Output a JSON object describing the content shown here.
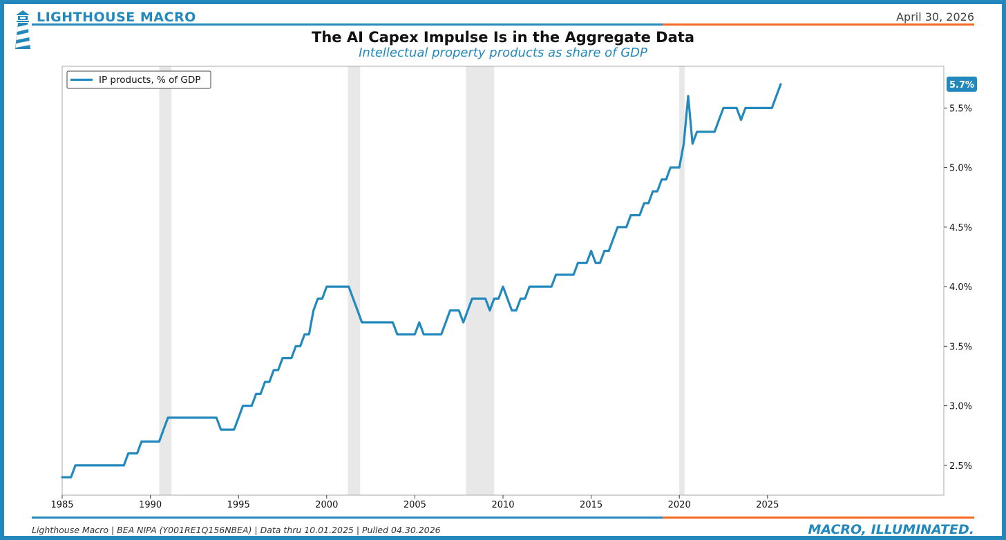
{
  "header": {
    "brand": "LIGHTHOUSE MACRO",
    "date": "April 30, 2026"
  },
  "colors": {
    "brand_blue": "#2389bd",
    "accent_orange": "#f26b21",
    "recession_shade": "#e8e8e8"
  },
  "chart_data": {
    "type": "line",
    "title": "The AI Capex Impulse Is in the Aggregate Data",
    "subtitle": "Intellectual property products as share of GDP",
    "xlabel": "",
    "ylabel": "",
    "xlim": [
      1985,
      2035
    ],
    "ylim": [
      2.25,
      5.85
    ],
    "x_ticks": [
      "1985",
      "1990",
      "1995",
      "2000",
      "2005",
      "2010",
      "2015",
      "2020",
      "2025"
    ],
    "y_ticks": [
      "2.5%",
      "3.0%",
      "3.5%",
      "4.0%",
      "4.5%",
      "5.0%",
      "5.5%"
    ],
    "y_axis_side": "right",
    "grid": false,
    "legend_position": "top-left",
    "last_value_label": "5.7%",
    "recessions": [
      [
        1990.5,
        1991.2
      ],
      [
        2001.2,
        2001.9
      ],
      [
        2007.9,
        2009.5
      ],
      [
        2020.0,
        2020.3
      ]
    ],
    "series": [
      {
        "name": "IP products, % of GDP",
        "color": "#2389bd",
        "x": [
          1985.0,
          1985.25,
          1985.5,
          1985.75,
          1986.0,
          1986.5,
          1987.0,
          1987.5,
          1988.0,
          1988.5,
          1988.75,
          1989.0,
          1989.25,
          1989.5,
          1989.75,
          1990.0,
          1990.25,
          1990.5,
          1990.75,
          1991.0,
          1991.25,
          1991.5,
          1992.0,
          1992.5,
          1993.0,
          1993.5,
          1993.75,
          1994.0,
          1994.5,
          1994.75,
          1995.0,
          1995.25,
          1995.5,
          1995.75,
          1996.0,
          1996.25,
          1996.5,
          1996.75,
          1997.0,
          1997.25,
          1997.5,
          1997.75,
          1998.0,
          1998.25,
          1998.5,
          1998.75,
          1999.0,
          1999.25,
          1999.5,
          1999.75,
          2000.0,
          2000.25,
          2000.5,
          2000.75,
          2001.0,
          2001.25,
          2001.5,
          2001.75,
          2002.0,
          2002.5,
          2003.0,
          2003.5,
          2003.75,
          2004.0,
          2004.5,
          2005.0,
          2005.25,
          2005.5,
          2005.75,
          2006.0,
          2006.5,
          2006.75,
          2007.0,
          2007.25,
          2007.5,
          2007.75,
          2008.0,
          2008.25,
          2008.5,
          2008.75,
          2009.0,
          2009.25,
          2009.5,
          2009.75,
          2010.0,
          2010.25,
          2010.5,
          2010.75,
          2011.0,
          2011.25,
          2011.5,
          2011.75,
          2012.0,
          2012.5,
          2012.75,
          2013.0,
          2013.5,
          2014.0,
          2014.25,
          2014.5,
          2014.75,
          2015.0,
          2015.25,
          2015.5,
          2015.75,
          2016.0,
          2016.25,
          2016.5,
          2016.75,
          2017.0,
          2017.25,
          2017.5,
          2017.75,
          2018.0,
          2018.25,
          2018.5,
          2018.75,
          2019.0,
          2019.25,
          2019.5,
          2019.75,
          2020.0,
          2020.25,
          2020.5,
          2020.75,
          2021.0,
          2021.5,
          2021.75,
          2022.0,
          2022.25,
          2022.5,
          2022.75,
          2023.0,
          2023.25,
          2023.5,
          2023.75,
          2024.0,
          2024.5,
          2025.0,
          2025.25,
          2025.5,
          2025.75
        ],
        "values": [
          2.4,
          2.4,
          2.4,
          2.5,
          2.5,
          2.5,
          2.5,
          2.5,
          2.5,
          2.5,
          2.6,
          2.6,
          2.6,
          2.7,
          2.7,
          2.7,
          2.7,
          2.7,
          2.8,
          2.9,
          2.9,
          2.9,
          2.9,
          2.9,
          2.9,
          2.9,
          2.9,
          2.8,
          2.8,
          2.8,
          2.9,
          3.0,
          3.0,
          3.0,
          3.1,
          3.1,
          3.2,
          3.2,
          3.3,
          3.3,
          3.4,
          3.4,
          3.4,
          3.5,
          3.5,
          3.6,
          3.6,
          3.8,
          3.9,
          3.9,
          4.0,
          4.0,
          4.0,
          4.0,
          4.0,
          4.0,
          3.9,
          3.8,
          3.7,
          3.7,
          3.7,
          3.7,
          3.7,
          3.6,
          3.6,
          3.6,
          3.7,
          3.6,
          3.6,
          3.6,
          3.6,
          3.7,
          3.8,
          3.8,
          3.8,
          3.7,
          3.8,
          3.9,
          3.9,
          3.9,
          3.9,
          3.8,
          3.9,
          3.9,
          4.0,
          3.9,
          3.8,
          3.8,
          3.9,
          3.9,
          4.0,
          4.0,
          4.0,
          4.0,
          4.0,
          4.1,
          4.1,
          4.1,
          4.2,
          4.2,
          4.2,
          4.3,
          4.2,
          4.2,
          4.3,
          4.3,
          4.4,
          4.5,
          4.5,
          4.5,
          4.6,
          4.6,
          4.6,
          4.7,
          4.7,
          4.8,
          4.8,
          4.9,
          4.9,
          5.0,
          5.0,
          5.0,
          5.2,
          5.6,
          5.2,
          5.3,
          5.3,
          5.3,
          5.3,
          5.4,
          5.5,
          5.5,
          5.5,
          5.5,
          5.4,
          5.5,
          5.5,
          5.5,
          5.5,
          5.5,
          5.6,
          5.7
        ]
      }
    ]
  },
  "footer": {
    "source": "Lighthouse Macro | BEA NIPA (Y001RE1Q156NBEA) | Data thru 10.01.2025 | Pulled 04.30.2026",
    "tagline": "MACRO, ILLUMINATED."
  }
}
